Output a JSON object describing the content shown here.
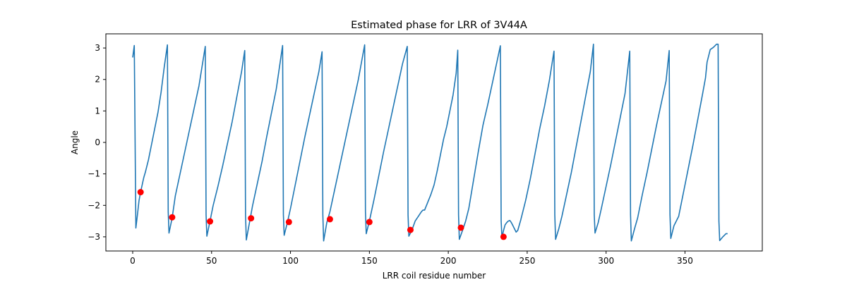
{
  "chart_data": {
    "type": "line",
    "title": "Estimated phase for LRR of 3V44A",
    "xlabel": "LRR coil residue number",
    "ylabel": "Angle",
    "xlim": [
      -17,
      399
    ],
    "ylim": [
      -3.45,
      3.45
    ],
    "xticks": [
      0,
      50,
      100,
      150,
      200,
      250,
      300,
      350
    ],
    "yticks": [
      -3,
      -2,
      -1,
      0,
      1,
      2,
      3
    ],
    "grid": false,
    "colors": {
      "line": "#1f77b4",
      "markers": "#ff0000"
    },
    "series": [
      {
        "style": "line",
        "x": [
          0,
          1,
          2,
          3,
          4,
          5,
          6,
          7,
          8,
          10,
          12,
          14,
          16,
          18,
          20,
          22,
          22.5,
          23,
          25,
          27,
          30,
          33,
          36,
          39,
          42,
          46,
          46.5,
          47,
          49,
          51,
          54,
          57,
          60,
          63,
          66,
          69,
          71,
          71.5,
          72,
          74,
          76,
          79,
          82,
          85,
          88,
          91,
          95,
          95.5,
          96,
          98,
          100,
          103,
          106,
          109,
          112,
          115,
          118,
          120,
          120.5,
          121,
          123,
          125,
          128,
          131,
          134,
          137,
          140,
          143,
          147,
          147.5,
          148,
          150,
          153,
          156,
          159,
          162,
          165,
          168,
          171,
          174,
          174.5,
          175,
          177,
          179,
          181,
          183,
          184,
          185,
          187,
          189,
          191,
          193,
          195,
          197,
          199,
          201,
          203,
          205,
          206,
          206.5,
          207,
          209,
          211,
          213,
          215,
          217,
          219,
          222,
          225,
          228,
          231,
          233,
          233.5,
          234,
          235,
          236,
          237,
          238,
          239,
          240,
          241,
          242,
          243,
          244,
          246,
          249,
          252,
          255,
          258,
          261,
          264,
          267,
          267.5,
          268,
          270,
          272,
          275,
          278,
          281,
          284,
          287,
          290,
          292,
          292.5,
          293,
          295,
          297,
          300,
          303,
          306,
          309,
          312,
          315,
          315.5,
          316,
          318,
          320,
          323,
          326,
          329,
          332,
          335,
          338,
          340,
          340.5,
          341,
          343,
          346,
          349,
          352,
          355,
          358,
          361,
          363,
          364,
          366,
          368,
          370,
          371,
          371.5,
          372,
          374,
          376,
          377
        ],
        "y": [
          2.7,
          3.08,
          -2.72,
          -2.3,
          -1.85,
          -1.58,
          -1.35,
          -1.12,
          -0.95,
          -0.55,
          -0.05,
          0.45,
          0.95,
          1.6,
          2.4,
          3.1,
          -2.2,
          -2.88,
          -2.4,
          -1.7,
          -1.0,
          -0.3,
          0.4,
          1.1,
          1.8,
          3.05,
          -2.3,
          -2.98,
          -2.5,
          -2.0,
          -1.4,
          -0.75,
          -0.05,
          0.65,
          1.45,
          2.25,
          2.92,
          -2.3,
          -3.1,
          -2.55,
          -2.0,
          -1.3,
          -0.6,
          0.2,
          0.95,
          1.7,
          3.08,
          -2.3,
          -2.95,
          -2.55,
          -2.1,
          -1.35,
          -0.6,
          0.15,
          0.85,
          1.55,
          2.25,
          2.88,
          -2.3,
          -3.13,
          -2.55,
          -2.2,
          -1.5,
          -0.8,
          -0.1,
          0.6,
          1.3,
          2.0,
          3.1,
          -2.2,
          -2.9,
          -2.5,
          -1.8,
          -1.05,
          -0.3,
          0.4,
          1.1,
          1.8,
          2.5,
          3.05,
          -2.3,
          -2.98,
          -2.78,
          -2.5,
          -2.35,
          -2.2,
          -2.15,
          -2.15,
          -1.9,
          -1.65,
          -1.35,
          -0.9,
          -0.4,
          0.1,
          0.5,
          1.0,
          1.5,
          2.2,
          2.93,
          -2.3,
          -3.08,
          -2.8,
          -2.5,
          -2.1,
          -1.5,
          -0.9,
          -0.3,
          0.55,
          1.2,
          1.9,
          2.6,
          3.07,
          -2.5,
          -3.02,
          -2.8,
          -2.62,
          -2.55,
          -2.5,
          -2.48,
          -2.55,
          -2.65,
          -2.75,
          -2.85,
          -2.8,
          -2.45,
          -1.85,
          -1.15,
          -0.35,
          0.45,
          1.15,
          1.95,
          2.9,
          -2.3,
          -3.08,
          -2.75,
          -2.35,
          -1.65,
          -0.95,
          -0.15,
          0.65,
          1.45,
          2.25,
          3.12,
          -2.3,
          -2.88,
          -2.55,
          -2.1,
          -1.4,
          -0.7,
          0.05,
          0.8,
          1.55,
          2.9,
          -2.3,
          -3.13,
          -2.75,
          -2.4,
          -1.65,
          -0.95,
          -0.2,
          0.55,
          1.25,
          1.95,
          2.92,
          -2.3,
          -3.05,
          -2.65,
          -2.35,
          -1.6,
          -0.85,
          -0.1,
          0.7,
          1.5,
          2.05,
          2.55,
          2.95,
          3.02,
          3.12,
          3.12,
          -2.5,
          -3.12,
          -3.0,
          -2.9,
          -2.9
        ]
      },
      {
        "style": "markers",
        "x": [
          5,
          25,
          49,
          75,
          99,
          125,
          150,
          176,
          208,
          235
        ],
        "y": [
          -1.58,
          -2.38,
          -2.51,
          -2.41,
          -2.53,
          -2.44,
          -2.53,
          -2.78,
          -2.71,
          -3.0
        ]
      }
    ]
  }
}
